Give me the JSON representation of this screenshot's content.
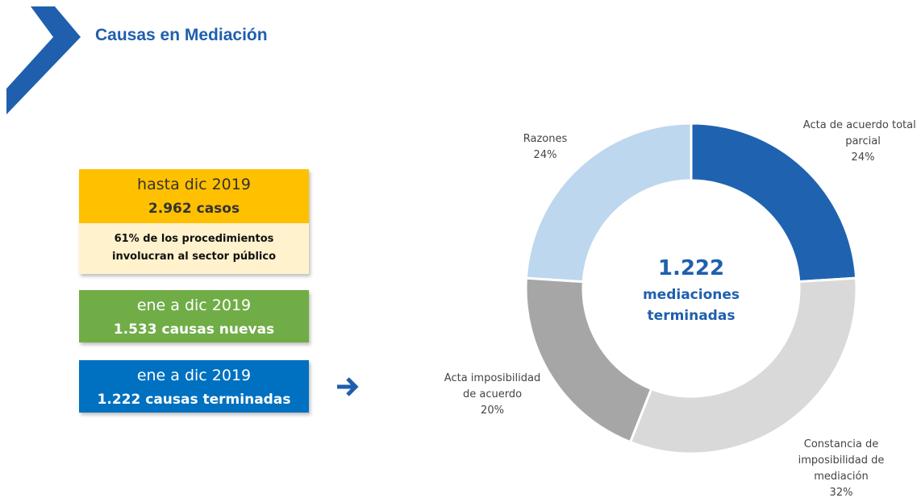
{
  "header": {
    "title": "Causas en Mediación"
  },
  "boxes": [
    {
      "lines": [
        "hasta dic 2019",
        "2.962 casos"
      ],
      "note_lines": [
        "61% de los procedimientos",
        "involucran  al sector público"
      ]
    },
    {
      "lines": [
        "ene a dic 2019",
        "1.533 causas nuevas"
      ]
    },
    {
      "lines": [
        "ene a dic 2019",
        "1.222  causas terminadas"
      ]
    }
  ],
  "chart_data": {
    "type": "donut",
    "center_text": [
      "1.222",
      "mediaciones",
      "terminadas"
    ],
    "categories": [
      "Acta de acuerdo total / parcial",
      "Constancia de imposibilidad de mediación",
      "Acta imposibilidad de acuerdo",
      "Razones"
    ],
    "values": [
      24,
      32,
      20,
      24
    ],
    "value_labels": [
      "24%",
      "32%",
      "20%",
      "24%"
    ],
    "colors": [
      "#1f63b0",
      "#d9d9d9",
      "#a6a6a6",
      "#bdd7ee"
    ]
  }
}
